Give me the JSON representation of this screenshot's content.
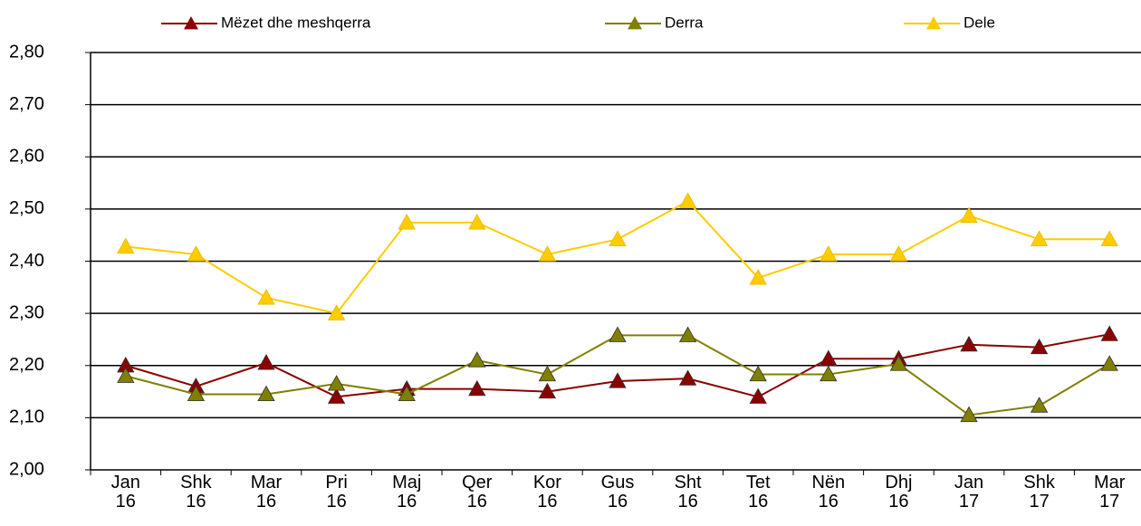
{
  "chart_data": {
    "type": "line",
    "categories": [
      "Jan 16",
      "Shk 16",
      "Mar 16",
      "Pri 16",
      "Maj 16",
      "Qer 16",
      "Kor 16",
      "Gus 16",
      "Sht 16",
      "Tet 16",
      "Nën 16",
      "Dhj 16",
      "Jan 17",
      "Shk 17",
      "Mar 17"
    ],
    "series": [
      {
        "name": "Mëzet dhe meshqerra",
        "color": "#8b0000",
        "values": [
          2.2,
          2.16,
          2.205,
          2.14,
          2.155,
          2.155,
          2.15,
          2.17,
          2.175,
          2.14,
          2.213,
          2.213,
          2.24,
          2.235,
          2.26
        ]
      },
      {
        "name": "Derra",
        "color": "#808000",
        "values": [
          2.18,
          2.145,
          2.145,
          2.165,
          2.145,
          2.21,
          2.183,
          2.258,
          2.258,
          2.183,
          2.183,
          2.203,
          2.105,
          2.123,
          2.203
        ]
      },
      {
        "name": "Dele",
        "color": "#ffcc00",
        "values": [
          2.428,
          2.413,
          2.33,
          2.3,
          2.474,
          2.474,
          2.413,
          2.442,
          2.515,
          2.368,
          2.413,
          2.413,
          2.487,
          2.442,
          2.442
        ]
      }
    ],
    "ylim": [
      2.0,
      2.8
    ],
    "yticks": [
      {
        "value": 2.0,
        "label": "2,00"
      },
      {
        "value": 2.1,
        "label": "2,10"
      },
      {
        "value": 2.2,
        "label": "2,20"
      },
      {
        "value": 2.3,
        "label": "2,30"
      },
      {
        "value": 2.4,
        "label": "2,40"
      },
      {
        "value": 2.5,
        "label": "2,50"
      },
      {
        "value": 2.6,
        "label": "2,60"
      },
      {
        "value": 2.7,
        "label": "2,70"
      },
      {
        "value": 2.8,
        "label": "2,80"
      }
    ],
    "grid": true,
    "legend": "top"
  }
}
